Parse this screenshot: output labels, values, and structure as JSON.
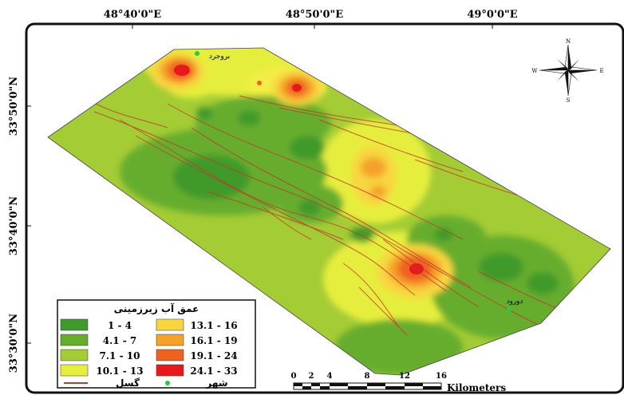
{
  "axes": {
    "longitude_labels": [
      "48°40'0\"E",
      "48°50'0\"E",
      "49°0'0\"E"
    ],
    "latitude_labels": [
      "33°50'0\"N",
      "33°40'0\"N",
      "33°30'0\"N"
    ]
  },
  "compass": {
    "n": "N",
    "s": "S",
    "e": "E",
    "w": "W"
  },
  "cities": [
    {
      "name": "بروجرد"
    },
    {
      "name": "دورود"
    }
  ],
  "legend": {
    "title": "عمق آب زیرزمینی",
    "classes": [
      {
        "label": "1 - 4",
        "color": "#3f9a2c"
      },
      {
        "label": "4.1 - 7",
        "color": "#66ad2e"
      },
      {
        "label": "7.1 - 10",
        "color": "#a4cc34"
      },
      {
        "label": "10.1 - 13",
        "color": "#e6ee3e"
      },
      {
        "label": "13.1 - 16",
        "color": "#f8d640"
      },
      {
        "label": "16.1 - 19",
        "color": "#f5a22a"
      },
      {
        "label": "19.1 - 24",
        "color": "#ef6220"
      },
      {
        "label": "24.1 - 33",
        "color": "#e8191c"
      }
    ],
    "fault_label": "گسل",
    "fault_color": "#c0392b",
    "city_label": "شهر",
    "city_color": "#22cc44"
  },
  "scale_bar": {
    "ticks": [
      "0",
      "2",
      "4",
      "8",
      "12",
      "16"
    ],
    "unit": "Kilometers"
  }
}
